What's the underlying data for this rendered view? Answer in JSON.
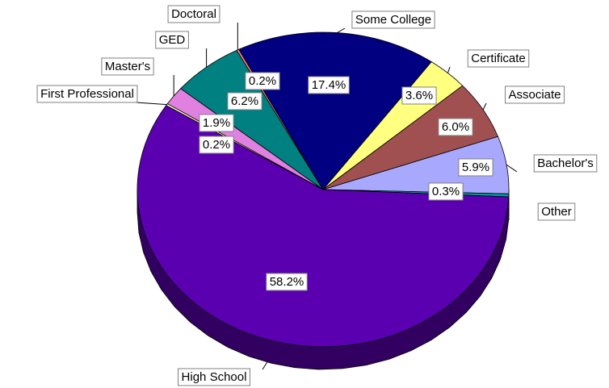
{
  "chart_data": {
    "type": "pie",
    "categories": [
      "Some College",
      "Certificate",
      "Associate",
      "Bachelor's",
      "Other",
      "High School",
      "First Professional",
      "Master's",
      "GED",
      "Doctoral"
    ],
    "values": [
      17.4,
      3.6,
      6.0,
      5.9,
      0.3,
      58.2,
      0.2,
      1.9,
      6.2,
      0.2
    ],
    "value_labels": [
      "17.4%",
      "3.6%",
      "6.0%",
      "5.9%",
      "0.3%",
      "58.2%",
      "0.2%",
      "1.9%",
      "6.2%",
      "0.2%"
    ],
    "colors": [
      "#000080",
      "#ffff80",
      "#a05050",
      "#a8a8ff",
      "#00a0a0",
      "#5a00b0",
      "#ffffc0",
      "#e080e0",
      "#008080",
      "#ff8080"
    ]
  }
}
